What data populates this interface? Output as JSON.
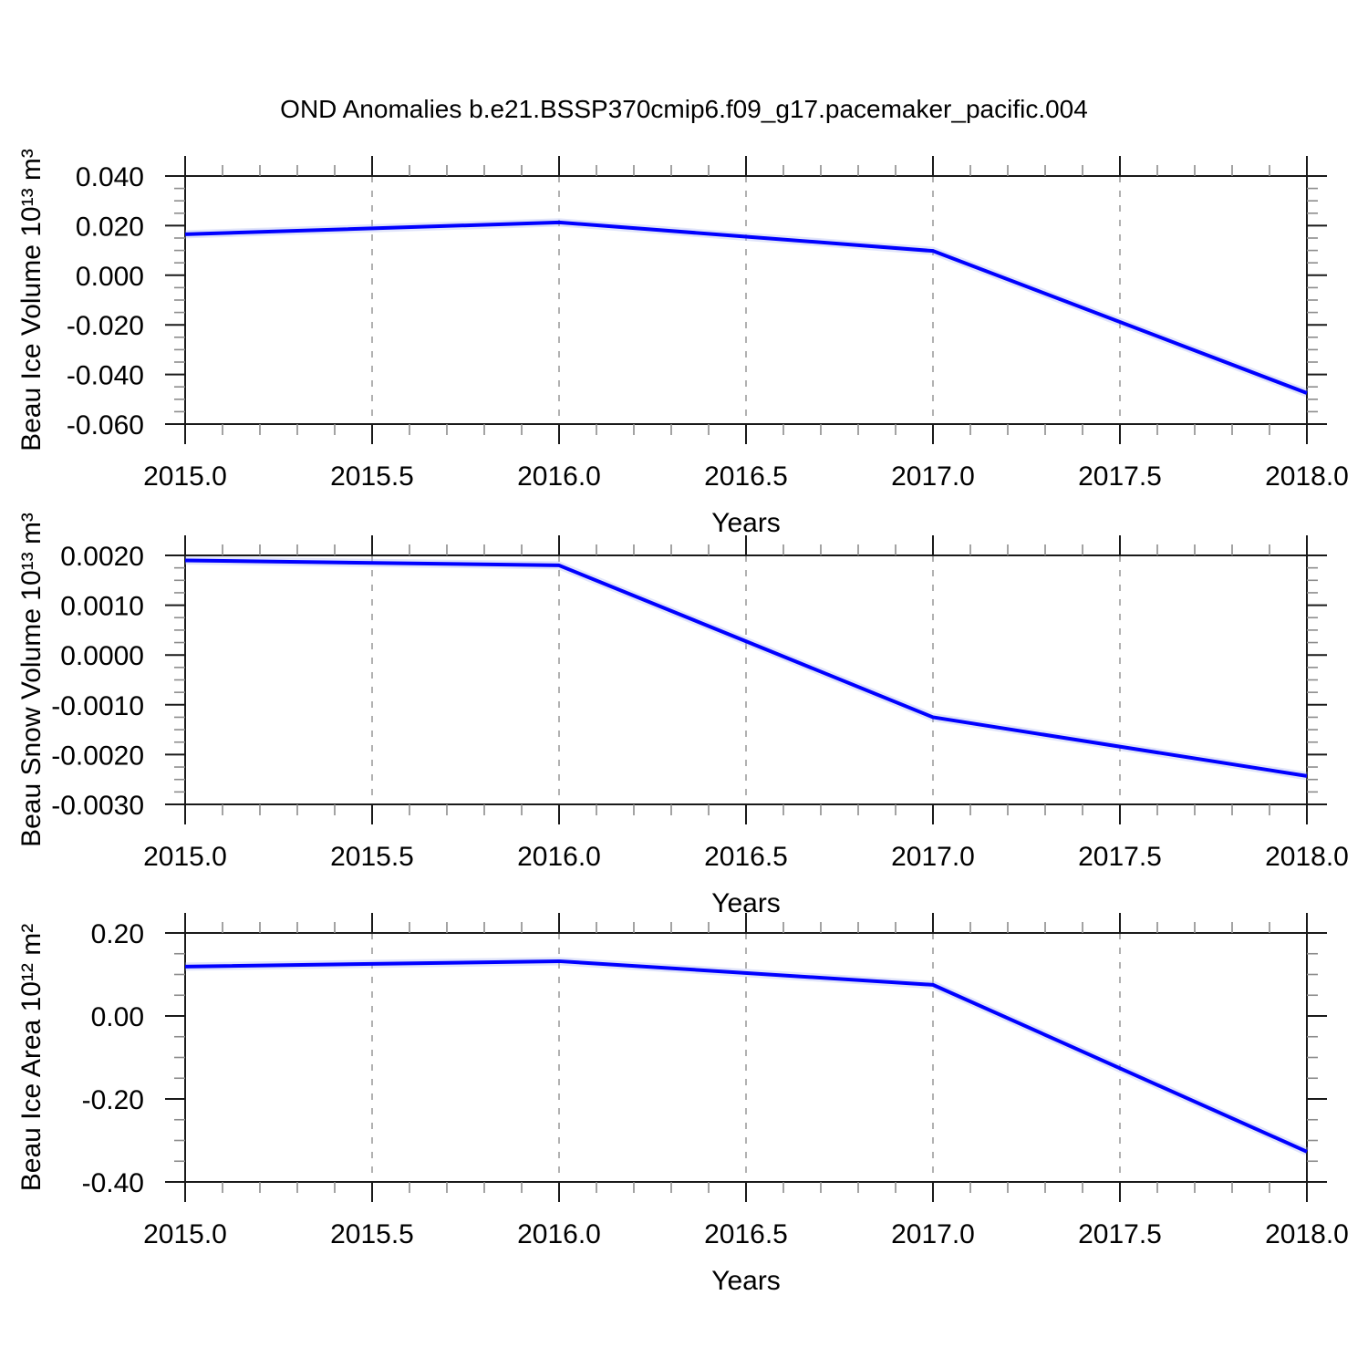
{
  "page_title": "OND Anomalies b.e21.BSSP370cmip6.f09_g17.pacemaker_pacific.004",
  "series_color": "#0000ff",
  "chart_data": [
    {
      "type": "line",
      "title": "OND Anomalies b.e21.BSSP370cmip6.f09_g17.pacemaker_pacific.004",
      "xlabel": "Years",
      "ylabel": "Beau Ice Volume 10¹³ m³",
      "x": [
        2015.0,
        2016.0,
        2017.0,
        2018.0
      ],
      "values": [
        0.0165,
        0.0213,
        0.0098,
        -0.0475
      ],
      "xlim": [
        2015.0,
        2018.0
      ],
      "ylim": [
        -0.06,
        0.04
      ],
      "x_major_step": 0.5,
      "x_minor_step": 0.1,
      "y_major_step": 0.02,
      "y_minor_step": 0.005,
      "x_tick_labels": [
        "2015.0",
        "2015.5",
        "2016.0",
        "2016.5",
        "2017.0",
        "2017.5",
        "2018.0"
      ],
      "y_tick_labels": [
        "0.040",
        "0.020",
        "0.000",
        "-0.020",
        "-0.040",
        "-0.060"
      ],
      "grid": "dashed vertical gridlines at interior x majors",
      "legend": "none",
      "line_color": "#0000ff"
    },
    {
      "type": "line",
      "title": "",
      "xlabel": "Years",
      "ylabel": "Beau Snow Volume 10¹³ m³",
      "x": [
        2015.0,
        2016.0,
        2017.0,
        2018.0
      ],
      "values": [
        0.0019,
        0.0018,
        -0.00125,
        -0.00243
      ],
      "xlim": [
        2015.0,
        2018.0
      ],
      "ylim": [
        -0.003,
        0.002
      ],
      "x_major_step": 0.5,
      "x_minor_step": 0.1,
      "y_major_step": 0.001,
      "y_minor_step": 0.00025,
      "x_tick_labels": [
        "2015.0",
        "2015.5",
        "2016.0",
        "2016.5",
        "2017.0",
        "2017.5",
        "2018.0"
      ],
      "y_tick_labels": [
        "0.0020",
        "0.0010",
        "0.0000",
        "-0.0010",
        "-0.0020",
        "-0.0030"
      ],
      "grid": "dashed vertical gridlines at interior x majors",
      "legend": "none",
      "line_color": "#0000ff"
    },
    {
      "type": "line",
      "title": "",
      "xlabel": "Years",
      "ylabel": "Beau Ice Area 10¹² m²",
      "x": [
        2015.0,
        2016.0,
        2017.0,
        2018.0
      ],
      "values": [
        0.119,
        0.132,
        0.075,
        -0.327
      ],
      "xlim": [
        2015.0,
        2018.0
      ],
      "ylim": [
        -0.4,
        0.2
      ],
      "x_major_step": 0.5,
      "x_minor_step": 0.1,
      "y_major_step": 0.2,
      "y_minor_step": 0.05,
      "x_tick_labels": [
        "2015.0",
        "2015.5",
        "2016.0",
        "2016.5",
        "2017.0",
        "2017.5",
        "2018.0"
      ],
      "y_tick_labels": [
        "0.20",
        "0.00",
        "-0.20",
        "-0.40"
      ],
      "grid": "dashed vertical gridlines at interior x majors",
      "legend": "none",
      "line_color": "#0000ff"
    }
  ]
}
